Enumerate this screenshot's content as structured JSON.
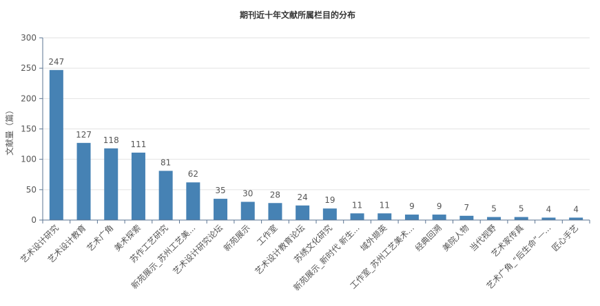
{
  "chart_data": {
    "type": "bar",
    "title": "期刊近十年文献所属栏目的分布",
    "xlabel": "",
    "ylabel": "文献量（篇）",
    "ylim": [
      0,
      300
    ],
    "yticks": [
      0,
      50,
      100,
      150,
      200,
      250,
      300
    ],
    "grid": true,
    "bar_color": "#4682b4",
    "categories": [
      "艺术设计研究",
      "艺术设计教育",
      "艺术广角",
      "美术探索",
      "苏作工艺研究",
      "新苑展示_苏州工艺美...",
      "艺术设计研究论坛",
      "新苑展示",
      "工作室",
      "艺术设计教育论坛",
      "苏绣文化研究",
      "新苑展示_新时代 新生...",
      "域外撷英",
      "工作室_苏州工艺美术...",
      "经典回溯",
      "美院人物",
      "当代视野",
      "艺术家传真",
      "艺术广角_“后生命”—...",
      "匠心手艺"
    ],
    "values": [
      247,
      127,
      118,
      111,
      81,
      62,
      35,
      30,
      28,
      24,
      19,
      11,
      11,
      9,
      9,
      7,
      5,
      5,
      4,
      4
    ]
  }
}
